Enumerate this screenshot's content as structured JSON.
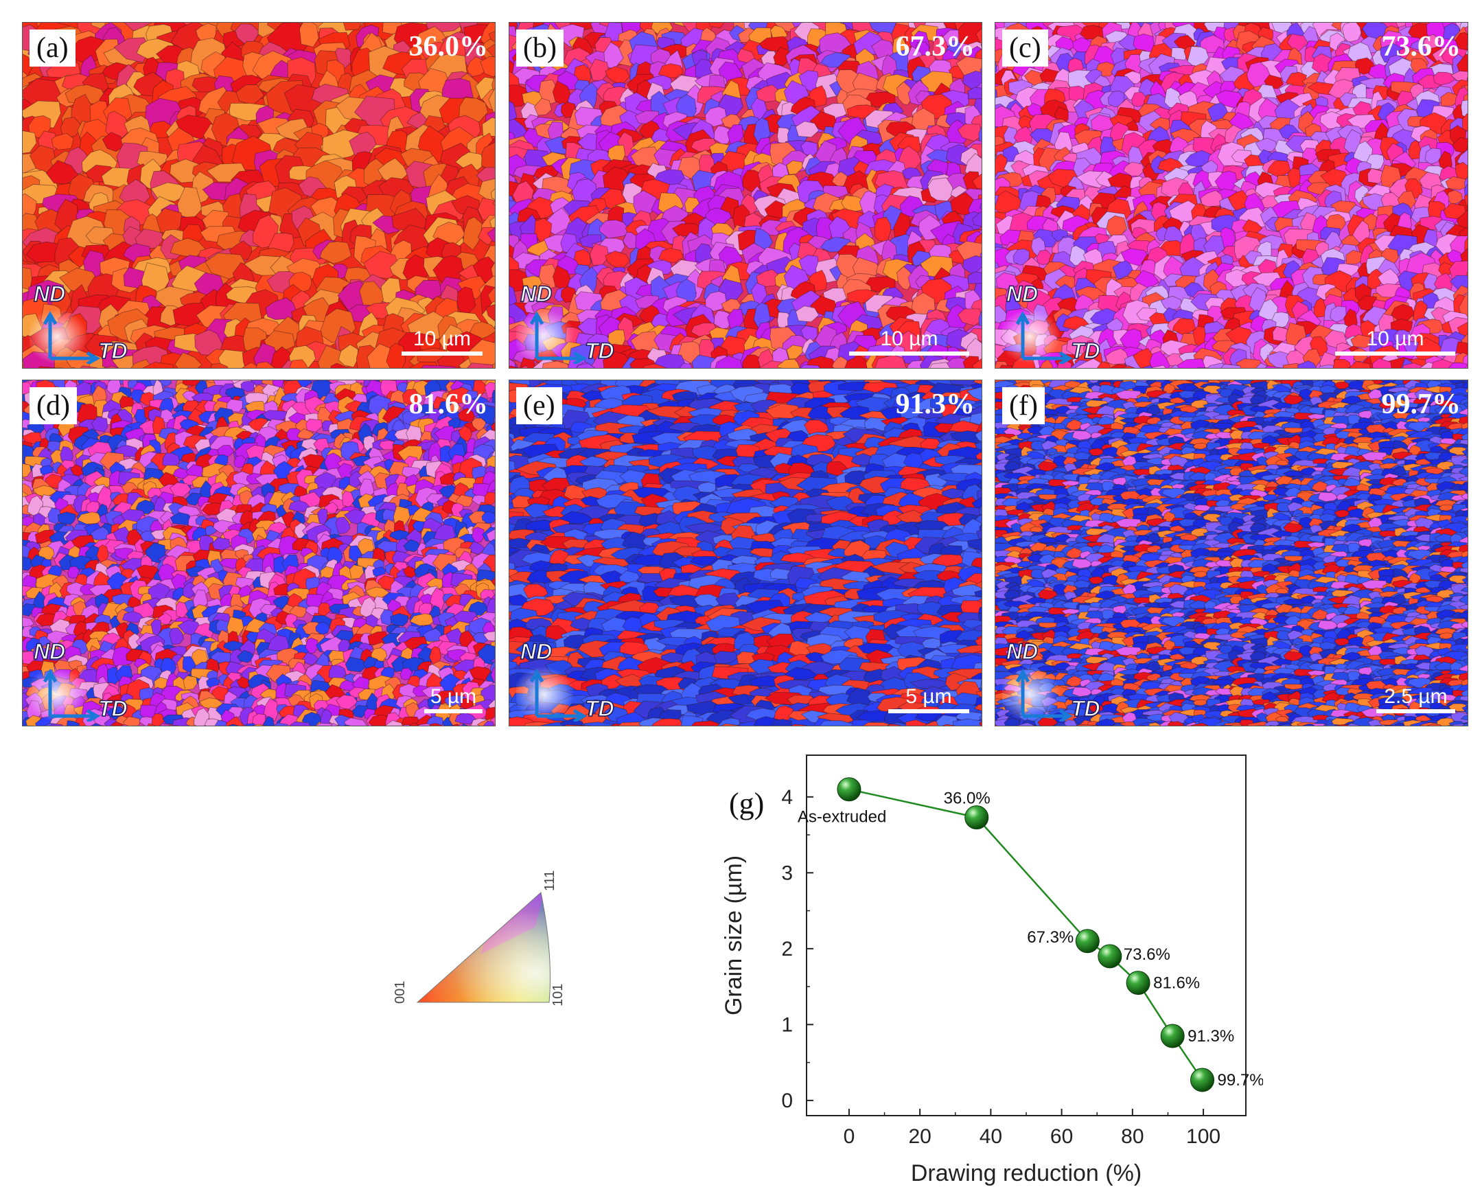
{
  "figure": {
    "panels": [
      {
        "label": "(a)",
        "reduction": "36.0%",
        "scale": "10 µm",
        "nd": "ND",
        "td": "TD",
        "palette": "red"
      },
      {
        "label": "(b)",
        "reduction": "67.3%",
        "scale": "10 µm",
        "nd": "ND",
        "td": "TD",
        "palette": "redviolet"
      },
      {
        "label": "(c)",
        "reduction": "73.6%",
        "scale": "10 µm",
        "nd": "ND",
        "td": "TD",
        "palette": "magenta"
      },
      {
        "label": "(d)",
        "reduction": "81.6%",
        "scale": "5 µm",
        "nd": "ND",
        "td": "TD",
        "palette": "mixed"
      },
      {
        "label": "(e)",
        "reduction": "91.3%",
        "scale": "5 µm",
        "nd": "ND",
        "td": "TD",
        "palette": "blue"
      },
      {
        "label": "(f)",
        "reduction": "99.7%",
        "scale": "2.5 µm",
        "nd": "ND",
        "td": "TD",
        "palette": "fineblue"
      }
    ],
    "ipf_legend": {
      "corner_001": "001",
      "corner_101": "101",
      "corner_111": "111"
    }
  },
  "chart_data": {
    "type": "line",
    "panel_label": "(g)",
    "title": "",
    "xlabel": "Drawing reduction (%)",
    "ylabel": "Grain size (µm)",
    "xlim": [
      -12,
      112
    ],
    "ylim": [
      -0.2,
      4.55
    ],
    "xticks": [
      0,
      20,
      40,
      60,
      80,
      100
    ],
    "yticks": [
      0,
      1,
      2,
      3,
      4
    ],
    "series": [
      {
        "name": "Grain size",
        "color": "#1f8a1f",
        "x": [
          0,
          36.0,
          67.3,
          73.6,
          81.6,
          91.3,
          99.7
        ],
        "y": [
          4.1,
          3.73,
          2.1,
          1.9,
          1.55,
          0.85,
          0.27
        ],
        "labels": [
          "As-extruded",
          "36.0%",
          "67.3%",
          "73.6%",
          "81.6%",
          "91.3%",
          "99.7%"
        ]
      }
    ]
  }
}
